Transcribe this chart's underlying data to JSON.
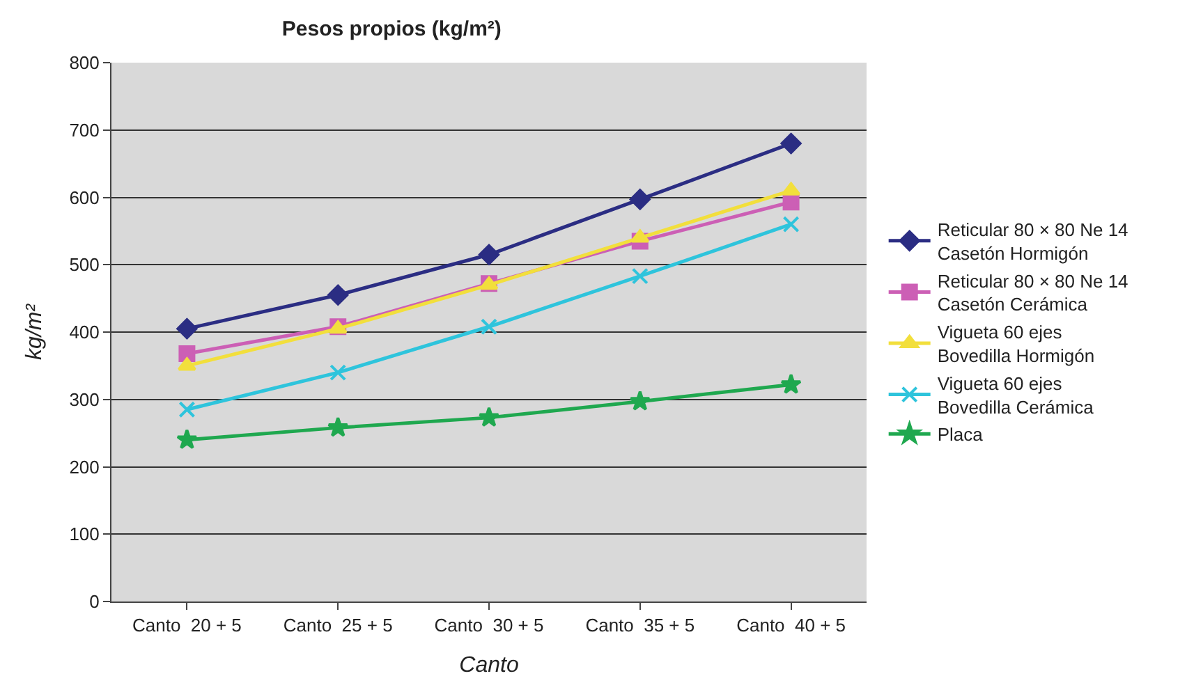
{
  "chart_data": {
    "type": "line",
    "title": "Pesos propios (kg/m²)",
    "xlabel": "Canto",
    "ylabel": "kg/m²",
    "categories": [
      "Canto  20 + 5",
      "Canto  25 + 5",
      "Canto  30 + 5",
      "Canto  35 + 5",
      "Canto  40 + 5"
    ],
    "series": [
      {
        "name": "Reticular 80 × 80 Ne 14\nCasetón Hormigón",
        "color": "#2b2d83",
        "marker": "diamond",
        "values": [
          405,
          455,
          515,
          597,
          680
        ]
      },
      {
        "name": "Reticular 80 × 80 Ne 14\nCasetón Cerámica",
        "color": "#cc5fb5",
        "marker": "square",
        "values": [
          368,
          408,
          472,
          535,
          593
        ]
      },
      {
        "name": "Vigueta 60 ejes\nBovedilla Hormigón",
        "color": "#f2df3c",
        "marker": "triangle",
        "values": [
          350,
          405,
          470,
          540,
          610
        ]
      },
      {
        "name": "Vigueta 60 ejes\nBovedilla Cerámica",
        "color": "#2ec4dc",
        "marker": "cross",
        "values": [
          285,
          340,
          408,
          483,
          560
        ]
      },
      {
        "name": "Placa",
        "color": "#1fa84f",
        "marker": "star",
        "values": [
          240,
          258,
          273,
          297,
          322
        ]
      }
    ],
    "ylim": [
      0,
      800
    ],
    "yticks": [
      0,
      100,
      200,
      300,
      400,
      500,
      600,
      700,
      800
    ],
    "grid": "y",
    "legend": "right",
    "line_style": "solid"
  }
}
